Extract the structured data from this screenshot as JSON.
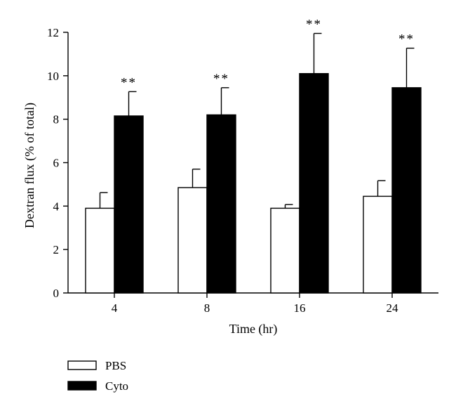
{
  "chart_data": {
    "type": "bar",
    "title": "",
    "xlabel": "Time (hr)",
    "ylabel": "Dextran flux (% of total)",
    "ylim": [
      0,
      12
    ],
    "yticks": [
      0,
      2,
      4,
      6,
      8,
      10,
      12
    ],
    "categories": [
      "4",
      "8",
      "16",
      "24"
    ],
    "series": [
      {
        "name": "PBS",
        "fill": "#ffffff",
        "values": [
          3.9,
          4.85,
          3.9,
          4.45
        ],
        "errors": [
          0.72,
          0.85,
          0.17,
          0.72
        ],
        "annotations": [
          "",
          "",
          "",
          ""
        ]
      },
      {
        "name": "Cyto",
        "fill": "#000000",
        "values": [
          8.15,
          8.2,
          10.1,
          9.45
        ],
        "errors": [
          1.12,
          1.25,
          1.85,
          1.82
        ],
        "annotations": [
          "**",
          "**",
          "**",
          "**"
        ]
      }
    ],
    "legend": {
      "placement": "bottom-left",
      "items": [
        "PBS",
        "Cyto"
      ]
    },
    "grid": false
  }
}
